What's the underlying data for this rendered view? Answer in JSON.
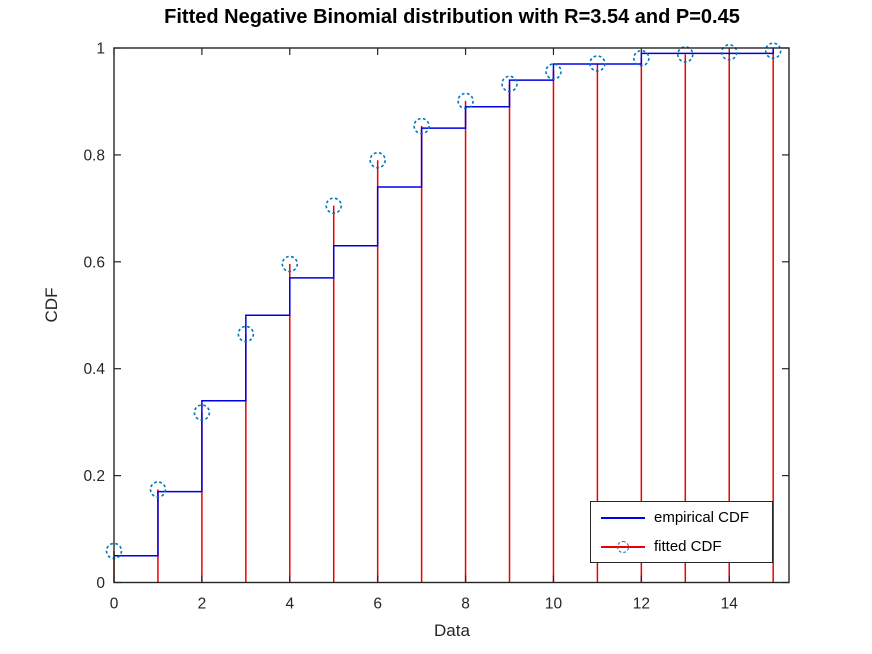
{
  "figure": {
    "background": "#ffffff"
  },
  "chart_data": {
    "type": "line",
    "subtype": "ecdf-stairs-plus-stem-fit",
    "title": "Fitted Negative Binomial distribution with R=3.54 and P=0.45",
    "xlabel": "Data",
    "ylabel": "CDF",
    "xlim": [
      0,
      15.36
    ],
    "ylim": [
      0,
      1
    ],
    "x_tick_values": [
      0,
      2,
      4,
      6,
      8,
      10,
      12,
      14
    ],
    "x_tick_labels": [
      "0",
      "2",
      "4",
      "6",
      "8",
      "10",
      "12",
      "14"
    ],
    "y_tick_values": [
      0,
      0.2,
      0.4,
      0.6,
      0.8,
      1
    ],
    "y_tick_labels": [
      "0",
      "0.2",
      "0.4",
      "0.6",
      "0.8",
      "1"
    ],
    "grid": false,
    "box": true,
    "tick_direction": "in",
    "axis_color": "#262626",
    "tick_label_color": "#262626",
    "series": [
      {
        "name": "empirical CDF",
        "type": "stairs",
        "color": "#0000E6",
        "x": [
          0,
          1,
          2,
          3,
          4,
          5,
          6,
          7,
          8,
          9,
          10,
          11,
          12,
          13,
          14
        ],
        "step_levels": [
          0.05,
          0.17,
          0.34,
          0.5,
          0.57,
          0.63,
          0.74,
          0.85,
          0.89,
          0.94,
          0.97,
          0.97,
          0.99,
          0.99,
          0.99
        ],
        "final_x": 15,
        "final_value": 1.0
      },
      {
        "name": "fitted CDF",
        "type": "stem",
        "line_color": "#EE0000",
        "marker": "dashed-open-circle",
        "marker_color": "#0077BD",
        "x": [
          0,
          1,
          2,
          3,
          4,
          5,
          6,
          7,
          8,
          9,
          10,
          11,
          12,
          13,
          14,
          15
        ],
        "values": [
          0.059,
          0.174,
          0.318,
          0.465,
          0.596,
          0.705,
          0.79,
          0.854,
          0.901,
          0.933,
          0.956,
          0.971,
          0.981,
          0.988,
          0.992,
          0.995
        ]
      }
    ],
    "legend": {
      "position": "southeast",
      "entries": [
        {
          "label": "empirical CDF",
          "sample": "solid-line",
          "color": "#0000E6"
        },
        {
          "label": "fitted CDF",
          "sample": "line-with-circle-marker",
          "line_color": "#EE0000",
          "marker_color": "#0077BD"
        }
      ]
    }
  }
}
